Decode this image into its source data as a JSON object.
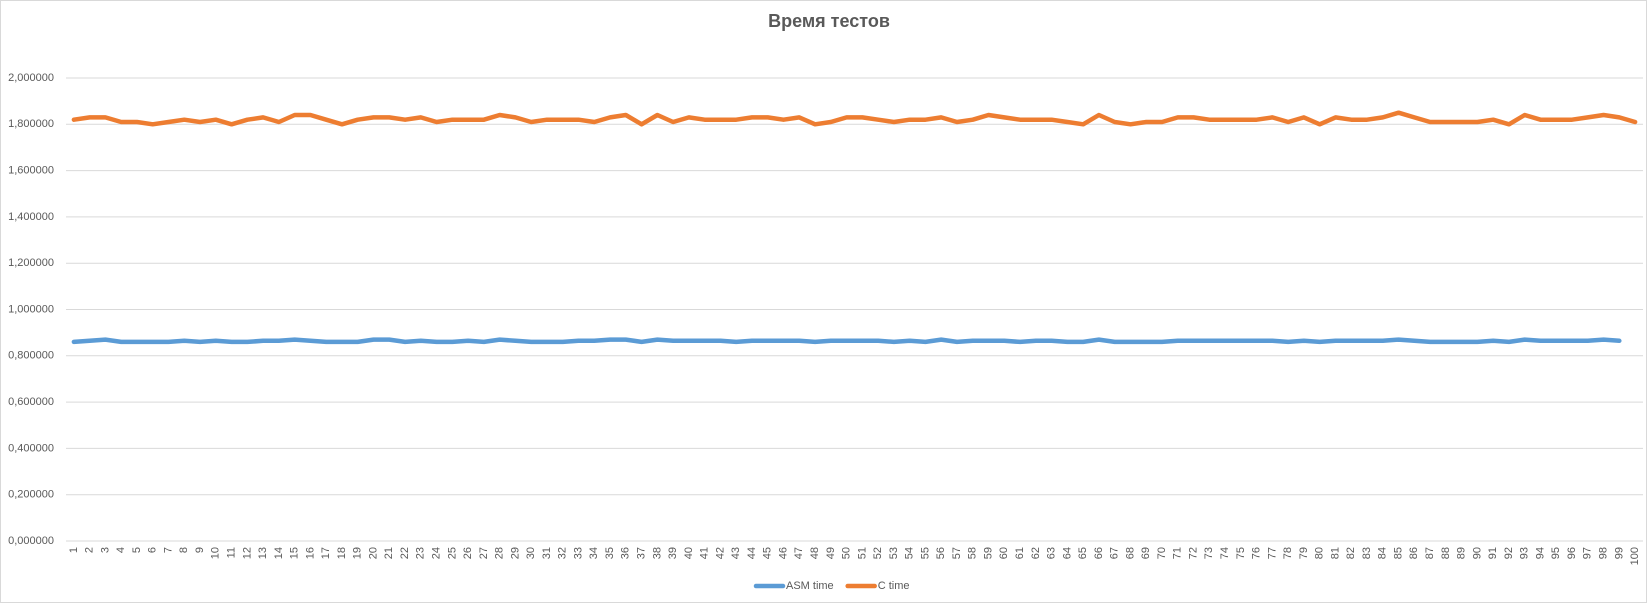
{
  "chart_data": {
    "type": "line",
    "title": "Время тестов",
    "categories": [
      1,
      2,
      3,
      4,
      5,
      6,
      7,
      8,
      9,
      10,
      11,
      12,
      13,
      14,
      15,
      16,
      17,
      18,
      19,
      20,
      21,
      22,
      23,
      24,
      25,
      26,
      27,
      28,
      29,
      30,
      31,
      32,
      33,
      34,
      35,
      36,
      37,
      38,
      39,
      40,
      41,
      42,
      43,
      44,
      45,
      46,
      47,
      48,
      49,
      50,
      51,
      52,
      53,
      54,
      55,
      56,
      57,
      58,
      59,
      60,
      61,
      62,
      63,
      64,
      65,
      66,
      67,
      68,
      69,
      70,
      71,
      72,
      73,
      74,
      75,
      76,
      77,
      78,
      79,
      80,
      81,
      82,
      83,
      84,
      85,
      86,
      87,
      88,
      89,
      90,
      91,
      92,
      93,
      94,
      95,
      96,
      97,
      98,
      99,
      100
    ],
    "series": [
      {
        "name": "ASM time",
        "color": "#5b9bd5",
        "values": [
          0.86,
          0.865,
          0.87,
          0.86,
          0.86,
          0.86,
          0.86,
          0.865,
          0.86,
          0.865,
          0.86,
          0.86,
          0.865,
          0.865,
          0.87,
          0.865,
          0.86,
          0.86,
          0.86,
          0.87,
          0.87,
          0.86,
          0.865,
          0.86,
          0.86,
          0.865,
          0.86,
          0.87,
          0.865,
          0.86,
          0.86,
          0.86,
          0.865,
          0.865,
          0.87,
          0.87,
          0.86,
          0.87,
          0.865,
          0.865,
          0.865,
          0.865,
          0.86,
          0.865,
          0.865,
          0.865,
          0.865,
          0.86,
          0.865,
          0.865,
          0.865,
          0.865,
          0.86,
          0.865,
          0.86,
          0.87,
          0.86,
          0.865,
          0.865,
          0.865,
          0.86,
          0.865,
          0.865,
          0.86,
          0.86,
          0.87,
          0.86,
          0.86,
          0.86,
          0.86,
          0.865,
          0.865,
          0.865,
          0.865,
          0.865,
          0.865,
          0.865,
          0.86,
          0.865,
          0.86,
          0.865,
          0.865,
          0.865,
          0.865,
          0.87,
          0.865,
          0.86,
          0.86,
          0.86,
          0.86,
          0.865,
          0.86,
          0.87,
          0.865,
          0.865,
          0.865,
          0.865,
          0.87,
          0.865,
          null
        ]
      },
      {
        "name": "C time",
        "color": "#ed7d31",
        "values": [
          1.82,
          1.83,
          1.83,
          1.81,
          1.81,
          1.8,
          1.81,
          1.82,
          1.81,
          1.82,
          1.8,
          1.82,
          1.83,
          1.81,
          1.84,
          1.84,
          1.82,
          1.8,
          1.82,
          1.83,
          1.83,
          1.82,
          1.83,
          1.81,
          1.82,
          1.82,
          1.82,
          1.84,
          1.83,
          1.81,
          1.82,
          1.82,
          1.82,
          1.81,
          1.83,
          1.84,
          1.8,
          1.84,
          1.81,
          1.83,
          1.82,
          1.82,
          1.82,
          1.83,
          1.83,
          1.82,
          1.83,
          1.8,
          1.81,
          1.83,
          1.83,
          1.82,
          1.81,
          1.82,
          1.82,
          1.83,
          1.81,
          1.82,
          1.84,
          1.83,
          1.82,
          1.82,
          1.82,
          1.81,
          1.8,
          1.84,
          1.81,
          1.8,
          1.81,
          1.81,
          1.83,
          1.83,
          1.82,
          1.82,
          1.82,
          1.82,
          1.83,
          1.81,
          1.83,
          1.8,
          1.83,
          1.82,
          1.82,
          1.83,
          1.85,
          1.83,
          1.81,
          1.81,
          1.81,
          1.81,
          1.82,
          1.8,
          1.84,
          1.82,
          1.82,
          1.82,
          1.83,
          1.84,
          1.83,
          1.81
        ]
      }
    ],
    "ylim": [
      0,
      2
    ],
    "yticks": [
      {
        "value": 0,
        "label": "0,000000"
      },
      {
        "value": 0.2,
        "label": "0,200000"
      },
      {
        "value": 0.4,
        "label": "0,400000"
      },
      {
        "value": 0.6,
        "label": "0,600000"
      },
      {
        "value": 0.8,
        "label": "0,800000"
      },
      {
        "value": 1,
        "label": "1,000000"
      },
      {
        "value": 1.2,
        "label": "1,200000"
      },
      {
        "value": 1.4,
        "label": "1,400000"
      },
      {
        "value": 1.6,
        "label": "1,600000"
      },
      {
        "value": 1.8,
        "label": "1,800000"
      },
      {
        "value": 2,
        "label": "2,000000"
      }
    ],
    "grid": true,
    "legend": "bottom"
  }
}
